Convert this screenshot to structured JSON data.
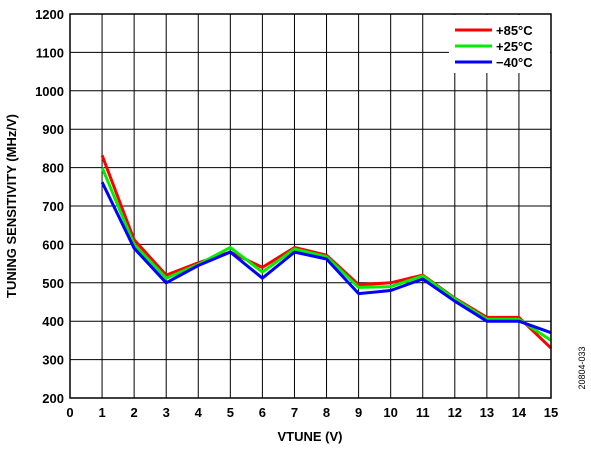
{
  "chart_data": {
    "type": "line",
    "xlabel": "VTUNE (V)",
    "ylabel": "TUNING SENSITIVITY (MHz/V)",
    "xlim": [
      0,
      15
    ],
    "ylim": [
      200,
      1200
    ],
    "xticks": [
      0,
      1,
      2,
      3,
      4,
      5,
      6,
      7,
      8,
      9,
      10,
      11,
      12,
      13,
      14,
      15
    ],
    "yticks": [
      200,
      300,
      400,
      500,
      600,
      700,
      800,
      900,
      1000,
      1100,
      1200
    ],
    "grid": true,
    "legend_position": "top-right",
    "x": [
      1,
      2,
      3,
      4,
      5,
      6,
      7,
      8,
      9,
      10,
      11,
      12,
      13,
      14,
      15
    ],
    "series": [
      {
        "name": "+85°C",
        "color": "#ff0000",
        "values": [
          832,
          612,
          520,
          552,
          580,
          540,
          592,
          572,
          495,
          500,
          520,
          460,
          410,
          410,
          330
        ]
      },
      {
        "name": "+25°C",
        "color": "#00ee00",
        "values": [
          800,
          600,
          512,
          548,
          592,
          528,
          588,
          568,
          488,
          490,
          518,
          458,
          405,
          405,
          350
        ]
      },
      {
        "name": "−40°C",
        "color": "#0000ff",
        "values": [
          762,
          590,
          500,
          545,
          580,
          512,
          580,
          562,
          472,
          480,
          510,
          452,
          400,
          400,
          370
        ]
      }
    ],
    "figure_id": "20804-033"
  }
}
